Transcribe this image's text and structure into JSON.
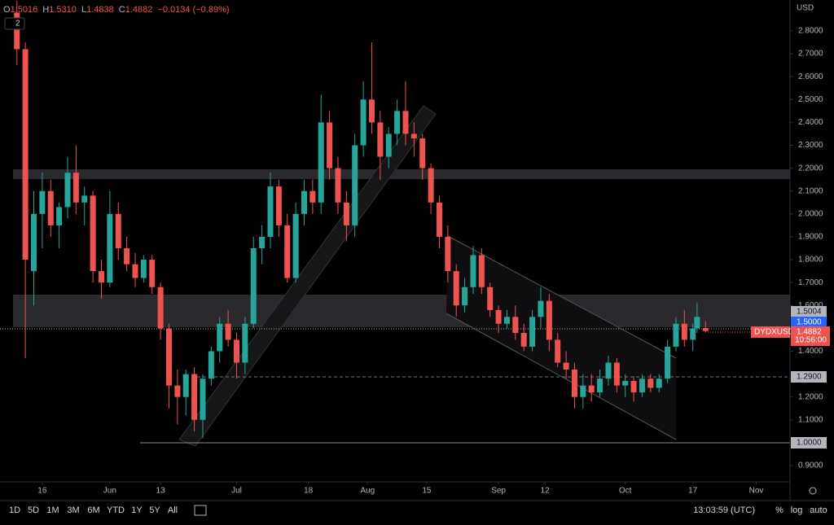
{
  "header": {
    "ohlc": [
      {
        "key": "O",
        "value": "1.5016"
      },
      {
        "key": "H",
        "value": "1.5310"
      },
      {
        "key": "L",
        "value": "1.4838"
      },
      {
        "key": "C",
        "value": "1.4882"
      }
    ],
    "change": "−0.0134 (−0.89%)",
    "badge": "2"
  },
  "chart_data": {
    "type": "candlestick",
    "currency": "USD",
    "x": [
      "May 10",
      "May 12",
      "May 14",
      "May 16",
      "May 18",
      "May 20",
      "May 22",
      "May 24",
      "May 26",
      "May 28",
      "May 30",
      "Jun 1",
      "Jun 3",
      "Jun 5",
      "Jun 7",
      "Jun 9",
      "Jun 11",
      "Jun 13",
      "Jun 15",
      "Jun 17",
      "Jun 19",
      "Jun 21",
      "Jun 23",
      "Jun 25",
      "Jun 27",
      "Jun 29",
      "Jul 1",
      "Jul 3",
      "Jul 5",
      "Jul 7",
      "Jul 9",
      "Jul 11",
      "Jul 13",
      "Jul 15",
      "Jul 17",
      "Jul 19",
      "Jul 21",
      "Jul 23",
      "Jul 25",
      "Jul 27",
      "Jul 29",
      "Jul 31",
      "Aug 2",
      "Aug 4",
      "Aug 6",
      "Aug 8",
      "Aug 10",
      "Aug 12",
      "Aug 14",
      "Aug 16",
      "Aug 18",
      "Aug 20",
      "Aug 22",
      "Aug 24",
      "Aug 26",
      "Aug 28",
      "Aug 30",
      "Sep 1",
      "Sep 3",
      "Sep 5",
      "Sep 7",
      "Sep 9",
      "Sep 11",
      "Sep 13",
      "Sep 15",
      "Sep 17",
      "Sep 19",
      "Sep 21",
      "Sep 23",
      "Sep 25",
      "Sep 27",
      "Sep 29",
      "Oct 1",
      "Oct 3",
      "Oct 5",
      "Oct 7",
      "Oct 9",
      "Oct 11",
      "Oct 13",
      "Oct 15",
      "Oct 17",
      "Oct 18",
      "Oct 20"
    ],
    "open": [
      2.88,
      2.72,
      1.75,
      2.0,
      2.1,
      1.95,
      2.03,
      2.18,
      2.05,
      2.08,
      1.75,
      1.7,
      2.0,
      1.85,
      1.78,
      1.72,
      1.8,
      1.68,
      1.5,
      1.25,
      1.2,
      1.3,
      1.1,
      1.28,
      1.4,
      1.52,
      1.45,
      1.35,
      1.52,
      1.85,
      1.9,
      2.12,
      1.95,
      1.72,
      2.0,
      2.1,
      2.05,
      2.4,
      2.2,
      2.05,
      1.95,
      2.3,
      2.5,
      2.4,
      2.25,
      2.35,
      2.45,
      2.35,
      2.33,
      2.2,
      2.05,
      1.9,
      1.75,
      1.6,
      1.68,
      1.82,
      1.68,
      1.58,
      1.52,
      1.55,
      1.48,
      1.42,
      1.55,
      1.62,
      1.45,
      1.35,
      1.32,
      1.2,
      1.25,
      1.22,
      1.28,
      1.35,
      1.25,
      1.27,
      1.22,
      1.28,
      1.24,
      1.28,
      1.42,
      1.52,
      1.45,
      1.5,
      1.5016
    ],
    "high": [
      2.93,
      2.75,
      2.1,
      2.18,
      2.15,
      2.05,
      2.25,
      2.3,
      2.12,
      2.1,
      1.8,
      2.1,
      2.05,
      1.9,
      1.83,
      1.82,
      1.82,
      1.7,
      1.52,
      1.32,
      1.32,
      1.33,
      1.3,
      1.42,
      1.55,
      1.58,
      1.48,
      1.55,
      1.9,
      1.95,
      2.18,
      2.15,
      2.0,
      2.05,
      2.15,
      2.15,
      2.52,
      2.45,
      2.25,
      2.1,
      2.35,
      2.58,
      2.75,
      2.45,
      2.38,
      2.5,
      2.58,
      2.4,
      2.35,
      2.22,
      2.08,
      1.95,
      1.78,
      1.72,
      1.86,
      1.85,
      1.7,
      1.6,
      1.58,
      1.6,
      1.52,
      1.58,
      1.68,
      1.65,
      1.48,
      1.4,
      1.35,
      1.3,
      1.3,
      1.32,
      1.38,
      1.37,
      1.3,
      1.29,
      1.3,
      1.3,
      1.3,
      1.45,
      1.55,
      1.58,
      1.52,
      1.61,
      1.531
    ],
    "low": [
      2.65,
      1.37,
      1.6,
      1.85,
      1.9,
      1.85,
      1.98,
      2.0,
      1.95,
      1.7,
      1.63,
      1.68,
      1.8,
      1.75,
      1.68,
      1.7,
      1.65,
      1.45,
      1.15,
      1.08,
      1.12,
      1.05,
      1.02,
      1.25,
      1.35,
      1.42,
      1.28,
      1.3,
      1.5,
      1.78,
      1.85,
      1.9,
      1.7,
      1.7,
      1.95,
      2.0,
      2.0,
      2.15,
      2.0,
      1.88,
      1.9,
      2.25,
      2.35,
      2.15,
      2.2,
      2.3,
      2.3,
      2.25,
      2.15,
      2.0,
      1.85,
      1.7,
      1.55,
      1.57,
      1.65,
      1.65,
      1.55,
      1.48,
      1.5,
      1.45,
      1.4,
      1.4,
      1.5,
      1.4,
      1.33,
      1.28,
      1.15,
      1.15,
      1.18,
      1.2,
      1.25,
      1.22,
      1.2,
      1.18,
      1.2,
      1.22,
      1.22,
      1.26,
      1.4,
      1.42,
      1.4,
      1.48,
      1.4838
    ],
    "close": [
      2.72,
      1.8,
      2.0,
      2.1,
      1.95,
      2.03,
      2.18,
      2.05,
      2.08,
      1.75,
      1.7,
      2.0,
      1.85,
      1.78,
      1.72,
      1.8,
      1.68,
      1.5,
      1.25,
      1.2,
      1.3,
      1.1,
      1.28,
      1.4,
      1.52,
      1.45,
      1.35,
      1.52,
      1.85,
      1.9,
      2.12,
      1.95,
      1.72,
      2.0,
      2.1,
      2.05,
      2.4,
      2.2,
      2.05,
      1.95,
      2.3,
      2.5,
      2.4,
      2.25,
      2.35,
      2.45,
      2.35,
      2.33,
      2.2,
      2.05,
      1.9,
      1.75,
      1.6,
      1.68,
      1.82,
      1.68,
      1.58,
      1.52,
      1.55,
      1.48,
      1.42,
      1.55,
      1.62,
      1.45,
      1.35,
      1.32,
      1.2,
      1.25,
      1.22,
      1.28,
      1.35,
      1.25,
      1.27,
      1.22,
      1.28,
      1.24,
      1.28,
      1.42,
      1.52,
      1.45,
      1.5,
      1.55,
      1.4882
    ],
    "colors": {
      "up": "#26a69a",
      "down": "#ef5350"
    },
    "xlim": [
      "May 6",
      "Nov 9"
    ],
    "xticks": [
      {
        "value": "May 16",
        "label": "16"
      },
      {
        "value": "Jun 1",
        "label": "Jun"
      },
      {
        "value": "Jun 13",
        "label": "13"
      },
      {
        "value": "Jul 1",
        "label": "Jul"
      },
      {
        "value": "Jul 18",
        "label": "18"
      },
      {
        "value": "Aug 1",
        "label": "Aug"
      },
      {
        "value": "Aug 15",
        "label": "15"
      },
      {
        "value": "Sep 1",
        "label": "Sep"
      },
      {
        "value": "Sep 12",
        "label": "12"
      },
      {
        "value": "Oct 1",
        "label": "Oct"
      },
      {
        "value": "Oct 17",
        "label": "17"
      },
      {
        "value": "Nov 1",
        "label": "Nov"
      }
    ],
    "ylim": [
      0.829,
      2.935
    ],
    "yticks": [
      {
        "value": 0.9,
        "label": "0.9000"
      },
      {
        "value": 1.1,
        "label": "1.1000"
      },
      {
        "value": 1.2,
        "label": "1.2000"
      },
      {
        "value": 1.4,
        "label": "1.4000"
      },
      {
        "value": 1.6,
        "label": "1.6000"
      },
      {
        "value": 1.7,
        "label": "1.7000"
      },
      {
        "value": 1.8,
        "label": "1.8000"
      },
      {
        "value": 1.9,
        "label": "1.9000"
      },
      {
        "value": 2.0,
        "label": "2.0000"
      },
      {
        "value": 2.1,
        "label": "2.1000"
      },
      {
        "value": 2.2,
        "label": "2.2000"
      },
      {
        "value": 2.3,
        "label": "2.3000"
      },
      {
        "value": 2.4,
        "label": "2.4000"
      },
      {
        "value": 2.5,
        "label": "2.5000"
      },
      {
        "value": 2.6,
        "label": "2.6000"
      },
      {
        "value": 2.7,
        "label": "2.7000"
      },
      {
        "value": 2.8,
        "label": "2.8000"
      }
    ],
    "grid": false,
    "price_labels": {
      "high_level": "1.5004",
      "cursor": "1.5000",
      "symbol": "DYDXUSD",
      "last": "1.4882",
      "countdown": "10:56:00",
      "level_1": "1.2900",
      "level_2": "1.0000"
    }
  },
  "toolbar": {
    "ranges": [
      "1D",
      "5D",
      "1M",
      "3M",
      "6M",
      "YTD",
      "1Y",
      "5Y",
      "All"
    ],
    "clock": "13:03:59 (UTC)",
    "options": [
      "%",
      "log",
      "auto"
    ]
  }
}
